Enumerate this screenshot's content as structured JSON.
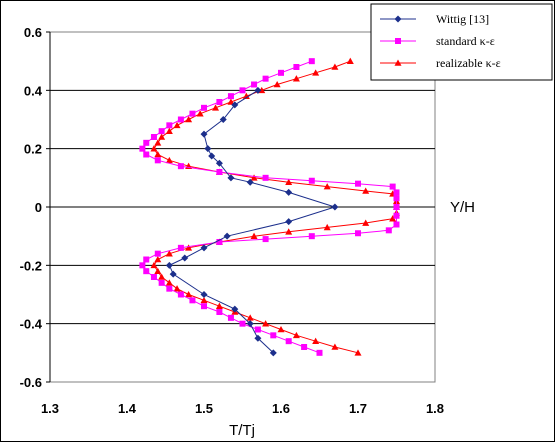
{
  "chart_data": {
    "type": "line",
    "xlabel": "T/Tj",
    "ylabel": "Y/H",
    "xlim": [
      1.3,
      1.8
    ],
    "ylim": [
      -0.6,
      0.6
    ],
    "x_ticks": [
      "1.3",
      "1.4",
      "1.5",
      "1.6",
      "1.7",
      "1.8"
    ],
    "y_ticks": [
      "0.6",
      "0.4",
      "0.2",
      "0",
      "-0.2",
      "-0.4",
      "-0.6"
    ],
    "grid": "horizontal",
    "legend_position": "top-right",
    "series": [
      {
        "name": "Wittig [13]",
        "color": "#1c2f8c",
        "marker": "diamond",
        "points": [
          [
            1.57,
            0.4
          ],
          [
            1.54,
            0.35
          ],
          [
            1.525,
            0.3
          ],
          [
            1.5,
            0.25
          ],
          [
            1.505,
            0.2
          ],
          [
            1.51,
            0.175
          ],
          [
            1.52,
            0.15
          ],
          [
            1.535,
            0.1
          ],
          [
            1.56,
            0.085
          ],
          [
            1.61,
            0.05
          ],
          [
            1.67,
            0.0
          ],
          [
            1.61,
            -0.05
          ],
          [
            1.53,
            -0.1
          ],
          [
            1.5,
            -0.14
          ],
          [
            1.475,
            -0.175
          ],
          [
            1.455,
            -0.2
          ],
          [
            1.46,
            -0.23
          ],
          [
            1.5,
            -0.3
          ],
          [
            1.54,
            -0.35
          ],
          [
            1.56,
            -0.4
          ],
          [
            1.57,
            -0.45
          ],
          [
            1.59,
            -0.5
          ]
        ]
      },
      {
        "name": "standard κ-ε",
        "color": "#ff00ff",
        "marker": "square",
        "points": [
          [
            1.64,
            0.5
          ],
          [
            1.62,
            0.48
          ],
          [
            1.6,
            0.46
          ],
          [
            1.58,
            0.44
          ],
          [
            1.565,
            0.42
          ],
          [
            1.55,
            0.4
          ],
          [
            1.535,
            0.38
          ],
          [
            1.52,
            0.36
          ],
          [
            1.5,
            0.34
          ],
          [
            1.485,
            0.32
          ],
          [
            1.47,
            0.3
          ],
          [
            1.455,
            0.28
          ],
          [
            1.445,
            0.26
          ],
          [
            1.435,
            0.24
          ],
          [
            1.425,
            0.22
          ],
          [
            1.42,
            0.2
          ],
          [
            1.425,
            0.18
          ],
          [
            1.44,
            0.16
          ],
          [
            1.47,
            0.14
          ],
          [
            1.52,
            0.12
          ],
          [
            1.58,
            0.1
          ],
          [
            1.64,
            0.09
          ],
          [
            1.7,
            0.08
          ],
          [
            1.745,
            0.07
          ],
          [
            1.75,
            0.05
          ],
          [
            1.75,
            0.03
          ],
          [
            1.75,
            0.0
          ],
          [
            1.75,
            -0.03
          ],
          [
            1.75,
            -0.06
          ],
          [
            1.74,
            -0.08
          ],
          [
            1.7,
            -0.09
          ],
          [
            1.64,
            -0.1
          ],
          [
            1.58,
            -0.11
          ],
          [
            1.52,
            -0.12
          ],
          [
            1.47,
            -0.14
          ],
          [
            1.44,
            -0.16
          ],
          [
            1.425,
            -0.18
          ],
          [
            1.42,
            -0.2
          ],
          [
            1.425,
            -0.22
          ],
          [
            1.435,
            -0.24
          ],
          [
            1.445,
            -0.26
          ],
          [
            1.455,
            -0.28
          ],
          [
            1.47,
            -0.3
          ],
          [
            1.485,
            -0.32
          ],
          [
            1.5,
            -0.34
          ],
          [
            1.52,
            -0.36
          ],
          [
            1.535,
            -0.38
          ],
          [
            1.55,
            -0.4
          ],
          [
            1.57,
            -0.42
          ],
          [
            1.59,
            -0.44
          ],
          [
            1.61,
            -0.46
          ],
          [
            1.63,
            -0.48
          ],
          [
            1.65,
            -0.5
          ]
        ]
      },
      {
        "name": "realizable κ-ε",
        "color": "#ff0000",
        "marker": "triangle",
        "points": [
          [
            1.69,
            0.5
          ],
          [
            1.67,
            0.48
          ],
          [
            1.645,
            0.46
          ],
          [
            1.62,
            0.44
          ],
          [
            1.595,
            0.42
          ],
          [
            1.575,
            0.4
          ],
          [
            1.555,
            0.38
          ],
          [
            1.535,
            0.36
          ],
          [
            1.515,
            0.34
          ],
          [
            1.495,
            0.32
          ],
          [
            1.48,
            0.3
          ],
          [
            1.465,
            0.28
          ],
          [
            1.455,
            0.26
          ],
          [
            1.445,
            0.24
          ],
          [
            1.44,
            0.22
          ],
          [
            1.435,
            0.2
          ],
          [
            1.44,
            0.18
          ],
          [
            1.455,
            0.16
          ],
          [
            1.48,
            0.14
          ],
          [
            1.52,
            0.12
          ],
          [
            1.565,
            0.1
          ],
          [
            1.61,
            0.085
          ],
          [
            1.66,
            0.07
          ],
          [
            1.71,
            0.055
          ],
          [
            1.745,
            0.045
          ],
          [
            1.75,
            0.02
          ],
          [
            1.75,
            0.0
          ],
          [
            1.75,
            -0.02
          ],
          [
            1.745,
            -0.04
          ],
          [
            1.71,
            -0.055
          ],
          [
            1.66,
            -0.07
          ],
          [
            1.61,
            -0.085
          ],
          [
            1.565,
            -0.1
          ],
          [
            1.52,
            -0.12
          ],
          [
            1.48,
            -0.14
          ],
          [
            1.455,
            -0.16
          ],
          [
            1.44,
            -0.18
          ],
          [
            1.435,
            -0.2
          ],
          [
            1.44,
            -0.22
          ],
          [
            1.445,
            -0.24
          ],
          [
            1.455,
            -0.26
          ],
          [
            1.465,
            -0.28
          ],
          [
            1.48,
            -0.3
          ],
          [
            1.5,
            -0.32
          ],
          [
            1.52,
            -0.34
          ],
          [
            1.54,
            -0.36
          ],
          [
            1.56,
            -0.38
          ],
          [
            1.58,
            -0.4
          ],
          [
            1.6,
            -0.42
          ],
          [
            1.62,
            -0.44
          ],
          [
            1.645,
            -0.46
          ],
          [
            1.67,
            -0.48
          ],
          [
            1.7,
            -0.5
          ]
        ]
      }
    ]
  }
}
